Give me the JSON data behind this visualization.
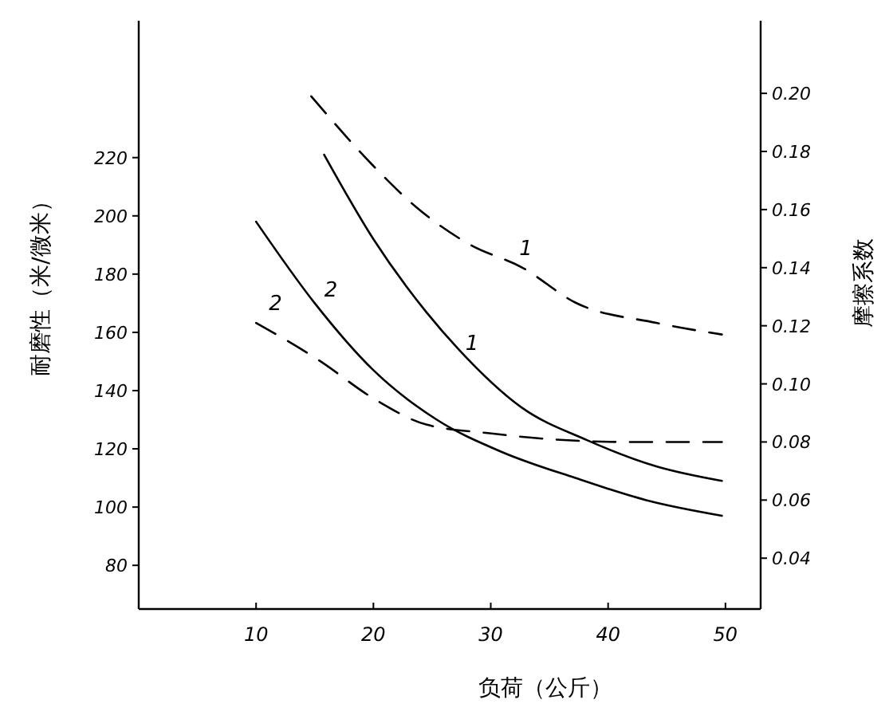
{
  "chart_data": {
    "type": "line",
    "xlabel": "负荷（公斤）",
    "ylabel": "耐磨性（米/微米）",
    "y2label": "摩擦系数",
    "xlim": [
      0,
      53
    ],
    "xticks": [
      10,
      20,
      30,
      40,
      50
    ],
    "ylim": [
      65,
      267
    ],
    "yticks": [
      80,
      100,
      120,
      140,
      160,
      180,
      200,
      220
    ],
    "y2lim": [
      0.0225,
      0.225
    ],
    "y2ticks": [
      {
        "value": 0.04,
        "label": "0.04"
      },
      {
        "value": 0.06,
        "label": "0.06"
      },
      {
        "value": 0.08,
        "label": "0.08"
      },
      {
        "value": 0.1,
        "label": "0.10"
      },
      {
        "value": 0.12,
        "label": "0.12"
      },
      {
        "value": 0.14,
        "label": "0.14"
      },
      {
        "value": 0.16,
        "label": "0.16"
      },
      {
        "value": 0.18,
        "label": "0.18"
      },
      {
        "value": 0.2,
        "label": "0.20"
      }
    ],
    "grid": false,
    "marker": "none",
    "series": [
      {
        "name": "1",
        "color": "#000000",
        "line_style": "solid",
        "x": [
          15.8,
          20,
          24.5,
          27.3,
          32.7,
          38.2,
          44.1,
          49.7
        ],
        "values": [
          221,
          192,
          167,
          154,
          134,
          123,
          114,
          109
        ]
      },
      {
        "name": "2",
        "color": "#000000",
        "line_style": "solid",
        "x": [
          10,
          15,
          20,
          25.4,
          30.9,
          37.2,
          43.6,
          49.7
        ],
        "values": [
          198,
          170,
          147,
          130,
          119,
          110,
          102,
          97
        ]
      },
      {
        "name": "1",
        "color": "#000000",
        "line_style": "dashed",
        "axis": "y2",
        "x": [
          14.7,
          20,
          23.6,
          28.2,
          32.7,
          37.2,
          44.1,
          49.7
        ],
        "values": [
          0.199,
          0.175,
          0.161,
          0.148,
          0.14,
          0.128,
          0.121,
          0.117
        ]
      },
      {
        "name": "2",
        "color": "#000000",
        "line_style": "dashed",
        "axis": "y2",
        "x": [
          10,
          15.4,
          20,
          24.5,
          29.9,
          34.9,
          41.7,
          49.7
        ],
        "values": [
          0.121,
          0.108,
          0.095,
          0.086,
          0.083,
          0.081,
          0.08,
          0.08
        ]
      }
    ]
  }
}
